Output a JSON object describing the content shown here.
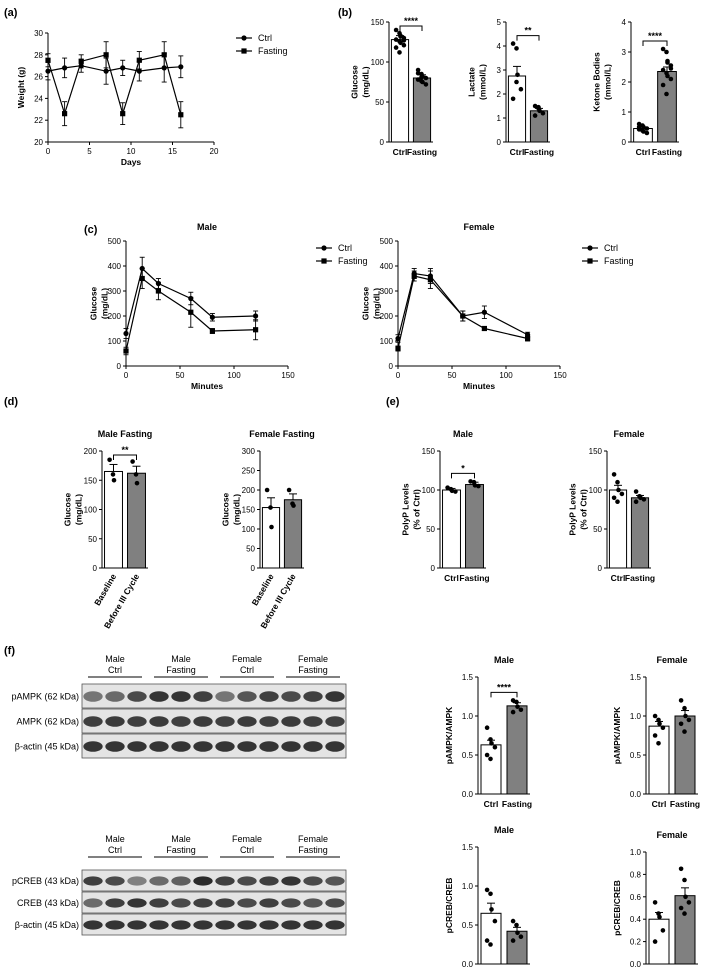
{
  "panel_labels": [
    "(a)",
    "(b)",
    "(c)",
    "(d)",
    "(e)",
    "(f)"
  ],
  "chart_data": [
    {
      "id": "a",
      "type": "line",
      "xlabel": "Days",
      "ylabel": "Weight (g)",
      "xlim": [
        0,
        20
      ],
      "ylim": [
        20,
        30
      ],
      "xticks": [
        0,
        5,
        10,
        15,
        20
      ],
      "yticks": [
        20,
        22,
        24,
        26,
        28,
        30
      ],
      "legend": "top-right",
      "series": [
        {
          "name": "Ctrl",
          "marker": "circle",
          "x": [
            0,
            2,
            4,
            7,
            9,
            11,
            14,
            16
          ],
          "y": [
            26.5,
            26.8,
            27.0,
            26.5,
            26.8,
            26.5,
            26.8,
            26.9
          ],
          "err": [
            0.8,
            0.9,
            0.6,
            1.2,
            0.7,
            0.9,
            1.3,
            1.0
          ]
        },
        {
          "name": "Fasting",
          "marker": "square",
          "x": [
            0,
            2,
            4,
            7,
            9,
            11,
            14,
            16
          ],
          "y": [
            27.5,
            22.6,
            27.4,
            28.0,
            22.6,
            27.5,
            28.0,
            22.5
          ],
          "err": [
            0.6,
            1.1,
            0.6,
            1.2,
            1.0,
            0.8,
            1.2,
            1.2
          ]
        }
      ]
    },
    {
      "id": "b1",
      "type": "bar",
      "title": "",
      "ylabel": "Glucose\n(mg/dL)",
      "ylim": [
        0,
        150
      ],
      "yticks": [
        0,
        50,
        100,
        150
      ],
      "categories": [
        "Ctrl",
        "Fasting"
      ],
      "values": [
        128,
        80
      ],
      "err": [
        5,
        4
      ],
      "significance": "****",
      "points": [
        [
          140,
          136,
          133,
          130,
          128,
          126,
          124,
          121,
          118,
          112,
          132,
          127
        ],
        [
          90,
          85,
          82,
          80,
          78,
          76,
          75,
          72,
          86,
          81
        ]
      ]
    },
    {
      "id": "b2",
      "type": "bar",
      "title": "",
      "ylabel": "Lactate\n(mmol/L)",
      "ylim": [
        0,
        5
      ],
      "yticks": [
        0,
        1,
        2,
        3,
        4,
        5
      ],
      "categories": [
        "Ctrl",
        "Fasting"
      ],
      "values": [
        2.75,
        1.3
      ],
      "err": [
        0.4,
        0.1
      ],
      "significance": "**",
      "points": [
        [
          4.1,
          3.9,
          2.8,
          2.2,
          1.8,
          2.5
        ],
        [
          1.5,
          1.45,
          1.3,
          1.2,
          1.1,
          1.4
        ]
      ]
    },
    {
      "id": "b3",
      "type": "bar",
      "title": "",
      "ylabel": "Ketone Bodies\n(mmol/L)",
      "ylim": [
        0,
        4
      ],
      "yticks": [
        0,
        1,
        2,
        3,
        4
      ],
      "categories": [
        "Ctrl",
        "Fasting"
      ],
      "values": [
        0.45,
        2.35
      ],
      "err": [
        0.05,
        0.15
      ],
      "significance": "****",
      "points": [
        [
          0.6,
          0.55,
          0.5,
          0.45,
          0.42,
          0.4,
          0.35,
          0.3,
          0.5,
          0.38
        ],
        [
          3.1,
          3.0,
          2.7,
          2.55,
          2.4,
          2.3,
          2.2,
          2.1,
          1.9,
          1.6,
          2.65,
          2.45
        ]
      ]
    },
    {
      "id": "c1",
      "type": "line",
      "title": "Male",
      "xlabel": "Minutes",
      "ylabel": "Glucose\n(mg/dL)",
      "xlim": [
        0,
        150
      ],
      "ylim": [
        0,
        500
      ],
      "xticks": [
        0,
        50,
        100,
        150
      ],
      "yticks": [
        0,
        100,
        200,
        300,
        400,
        500
      ],
      "legend": "top-right",
      "series": [
        {
          "name": "Ctrl",
          "marker": "circle",
          "x": [
            0,
            15,
            30,
            60,
            80,
            120
          ],
          "y": [
            130,
            390,
            330,
            270,
            195,
            200
          ],
          "err": [
            20,
            45,
            20,
            25,
            15,
            20
          ]
        },
        {
          "name": "Fasting",
          "marker": "square",
          "x": [
            0,
            15,
            30,
            60,
            80,
            120
          ],
          "y": [
            60,
            350,
            300,
            215,
            140,
            145
          ],
          "err": [
            15,
            40,
            35,
            60,
            10,
            40
          ]
        }
      ]
    },
    {
      "id": "c2",
      "type": "line",
      "title": "Female",
      "xlabel": "Minutes",
      "ylabel": "Glucose\n(mg/dL)",
      "xlim": [
        0,
        150
      ],
      "ylim": [
        0,
        500
      ],
      "xticks": [
        0,
        50,
        100,
        150
      ],
      "yticks": [
        0,
        100,
        200,
        300,
        400,
        500
      ],
      "legend": "top-right",
      "series": [
        {
          "name": "Ctrl",
          "marker": "circle",
          "x": [
            0,
            15,
            30,
            60,
            80,
            120
          ],
          "y": [
            110,
            370,
            360,
            200,
            215,
            125
          ],
          "err": [
            15,
            20,
            30,
            20,
            25,
            10
          ]
        },
        {
          "name": "Fasting",
          "marker": "square",
          "x": [
            0,
            15,
            30,
            60,
            80,
            120
          ],
          "y": [
            70,
            360,
            345,
            200,
            150,
            110
          ],
          "err": [
            10,
            20,
            35,
            20,
            8,
            10
          ]
        }
      ]
    },
    {
      "id": "d1",
      "type": "bar",
      "title": "Male Fasting",
      "ylabel": "Glucose\n(mg/dL)",
      "ylim": [
        0,
        200
      ],
      "yticks": [
        0,
        50,
        100,
        150,
        200
      ],
      "categories": [
        "Baseline",
        "Before III Cycle"
      ],
      "values": [
        165,
        162
      ],
      "err": [
        12,
        12
      ],
      "significance": "**",
      "points": [
        [
          185,
          160,
          150
        ],
        [
          182,
          160,
          145
        ]
      ]
    },
    {
      "id": "d2",
      "type": "bar",
      "title": "Female Fasting",
      "ylabel": "Glucose\n(mg/dL)",
      "ylim": [
        0,
        300
      ],
      "yticks": [
        0,
        50,
        100,
        150,
        200,
        250,
        300
      ],
      "categories": [
        "Baseline",
        "Before III Cycle"
      ],
      "values": [
        155,
        175
      ],
      "err": [
        25,
        15
      ],
      "significance": "",
      "points": [
        [
          200,
          155,
          105
        ],
        [
          200,
          165,
          160
        ]
      ]
    },
    {
      "id": "e1",
      "type": "bar",
      "title": "Male",
      "ylabel": "PolyP Levels\n(% of Ctrl)",
      "ylim": [
        0,
        150
      ],
      "yticks": [
        0,
        50,
        100,
        150
      ],
      "categories": [
        "Ctrl",
        "Fasting"
      ],
      "values": [
        100,
        107
      ],
      "err": [
        2,
        3
      ],
      "significance": "*",
      "points": [
        [
          103,
          101,
          99,
          98
        ],
        [
          111,
          110,
          106,
          105
        ]
      ]
    },
    {
      "id": "e2",
      "type": "bar",
      "title": "Female",
      "ylabel": "PolyP Levels\n(% of Ctrl)",
      "ylim": [
        0,
        150
      ],
      "yticks": [
        0,
        50,
        100,
        150
      ],
      "categories": [
        "Ctrl",
        "Fasting"
      ],
      "values": [
        100,
        90
      ],
      "err": [
        6,
        3
      ],
      "significance": "",
      "points": [
        [
          120,
          110,
          100,
          95,
          90,
          85
        ],
        [
          98,
          92,
          90,
          88,
          85
        ]
      ]
    },
    {
      "id": "f1",
      "type": "bar",
      "title": "Male",
      "ylabel": "pAMPK/AMPK",
      "ylim": [
        0,
        1.5
      ],
      "yticks": [
        0.0,
        0.5,
        1.0,
        1.5
      ],
      "categories": [
        "Ctrl",
        "Fasting"
      ],
      "values": [
        0.63,
        1.13
      ],
      "err": [
        0.06,
        0.04
      ],
      "significance": "****",
      "points": [
        [
          0.85,
          0.7,
          0.65,
          0.6,
          0.5,
          0.45
        ],
        [
          1.2,
          1.18,
          1.12,
          1.08,
          1.05
        ]
      ]
    },
    {
      "id": "f2",
      "type": "bar",
      "title": "Female",
      "ylabel": "pAMPK/AMPK",
      "ylim": [
        0,
        1.5
      ],
      "yticks": [
        0.0,
        0.5,
        1.0,
        1.5
      ],
      "categories": [
        "Ctrl",
        "Fasting"
      ],
      "values": [
        0.87,
        1.0
      ],
      "err": [
        0.06,
        0.07
      ],
      "significance": "",
      "points": [
        [
          1.0,
          0.95,
          0.9,
          0.85,
          0.75,
          0.65
        ],
        [
          1.2,
          1.1,
          1.0,
          0.95,
          0.9,
          0.8
        ]
      ]
    },
    {
      "id": "f3",
      "type": "bar",
      "title": "Male",
      "ylabel": "pCREB/CREB",
      "ylim": [
        0,
        1.5
      ],
      "yticks": [
        0.0,
        0.5,
        1.0,
        1.5
      ],
      "categories": [
        "Ctrl",
        "Fasting"
      ],
      "values": [
        0.65,
        0.42
      ],
      "err": [
        0.13,
        0.05
      ],
      "significance": "",
      "points": [
        [
          0.95,
          0.9,
          0.7,
          0.55,
          0.3,
          0.25
        ],
        [
          0.55,
          0.5,
          0.4,
          0.35,
          0.3
        ]
      ]
    },
    {
      "id": "f4",
      "type": "bar",
      "title": "Female",
      "ylabel": "pCREB/CREB",
      "ylim": [
        0,
        1.0
      ],
      "yticks": [
        0.0,
        0.2,
        0.4,
        0.6,
        0.8,
        1.0
      ],
      "categories": [
        "Ctrl",
        "Fasting"
      ],
      "values": [
        0.4,
        0.61
      ],
      "err": [
        0.06,
        0.07
      ],
      "significance": "",
      "points": [
        [
          0.55,
          0.45,
          0.42,
          0.3,
          0.2
        ],
        [
          0.85,
          0.75,
          0.6,
          0.55,
          0.5,
          0.45
        ]
      ]
    }
  ],
  "blots": [
    {
      "id": "blot1",
      "groups": [
        "Male\nCtrl",
        "Male\nFasting",
        "Female\nCtrl",
        "Female\nFasting"
      ],
      "rows": [
        {
          "label": "pAMPK (62 kDa)",
          "intensity": [
            0.55,
            0.6,
            0.75,
            0.85,
            0.85,
            0.8,
            0.55,
            0.7,
            0.8,
            0.75,
            0.8,
            0.85
          ]
        },
        {
          "label": "AMPK (62 kDa)",
          "intensity": [
            0.8,
            0.82,
            0.8,
            0.82,
            0.8,
            0.82,
            0.8,
            0.82,
            0.8,
            0.82,
            0.8,
            0.8
          ]
        },
        {
          "label": "β-actin (45 kDa)",
          "intensity": [
            0.85,
            0.85,
            0.85,
            0.85,
            0.85,
            0.85,
            0.85,
            0.85,
            0.85,
            0.85,
            0.85,
            0.85
          ]
        }
      ]
    },
    {
      "id": "blot2",
      "groups": [
        "Male\nCtrl",
        "Male\nFasting",
        "Female\nCtrl",
        "Female\nFasting"
      ],
      "rows": [
        {
          "label": "pCREB (43 kDa)",
          "intensity": [
            0.8,
            0.75,
            0.5,
            0.6,
            0.65,
            0.9,
            0.8,
            0.75,
            0.8,
            0.85,
            0.75,
            0.7
          ]
        },
        {
          "label": "CREB (43 kDa)",
          "intensity": [
            0.6,
            0.8,
            0.85,
            0.8,
            0.75,
            0.8,
            0.8,
            0.75,
            0.8,
            0.75,
            0.7,
            0.75
          ]
        },
        {
          "label": "β-actin (45 kDa)",
          "intensity": [
            0.85,
            0.85,
            0.85,
            0.85,
            0.85,
            0.85,
            0.85,
            0.85,
            0.85,
            0.85,
            0.85,
            0.85
          ]
        }
      ]
    }
  ]
}
